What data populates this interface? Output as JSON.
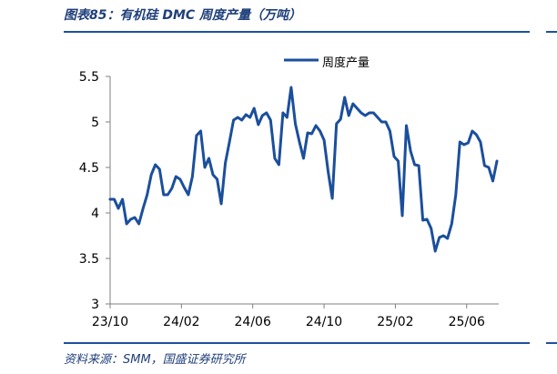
{
  "header": {
    "title": "图表85：有机硅 DMC 周度产量（万吨）"
  },
  "footer": {
    "source": "资料来源：SMM，国盛证券研究所"
  },
  "chart_data": {
    "type": "line",
    "title": "图表85：有机硅 DMC 周度产量（万吨）",
    "xlabel": "",
    "ylabel": "",
    "ylim": [
      3,
      5.5
    ],
    "yticks": [
      "3",
      "3.5",
      "4",
      "4.5",
      "5",
      "5.5"
    ],
    "xticks": [
      "23/10",
      "24/02",
      "24/06",
      "24/10",
      "25/02",
      "25/06"
    ],
    "legend_position": "top-center",
    "grid": false,
    "series_color": "#1b4f9c",
    "series": [
      {
        "name": "周度产量",
        "values": [
          4.15,
          4.15,
          4.05,
          4.15,
          3.88,
          3.93,
          3.95,
          3.88,
          4.05,
          4.2,
          4.42,
          4.53,
          4.48,
          4.2,
          4.2,
          4.27,
          4.4,
          4.37,
          4.28,
          4.2,
          4.4,
          4.85,
          4.9,
          4.5,
          4.6,
          4.42,
          4.37,
          4.1,
          4.55,
          4.78,
          5.02,
          5.05,
          5.02,
          5.08,
          5.05,
          5.15,
          4.97,
          5.07,
          5.1,
          5.02,
          4.6,
          4.53,
          5.1,
          5.05,
          5.38,
          4.98,
          4.78,
          4.6,
          4.88,
          4.87,
          4.96,
          4.9,
          4.8,
          4.45,
          4.16,
          4.98,
          5.03,
          5.27,
          5.07,
          5.2,
          5.15,
          5.1,
          5.07,
          5.1,
          5.1,
          5.05,
          5.0,
          5.0,
          4.9,
          4.62,
          4.57,
          3.97,
          4.96,
          4.68,
          4.53,
          4.52,
          3.92,
          3.93,
          3.83,
          3.58,
          3.73,
          3.75,
          3.72,
          3.88,
          4.2,
          4.78,
          4.75,
          4.77,
          4.9,
          4.86,
          4.78,
          4.52,
          4.5,
          4.35,
          4.57
        ]
      }
    ]
  }
}
